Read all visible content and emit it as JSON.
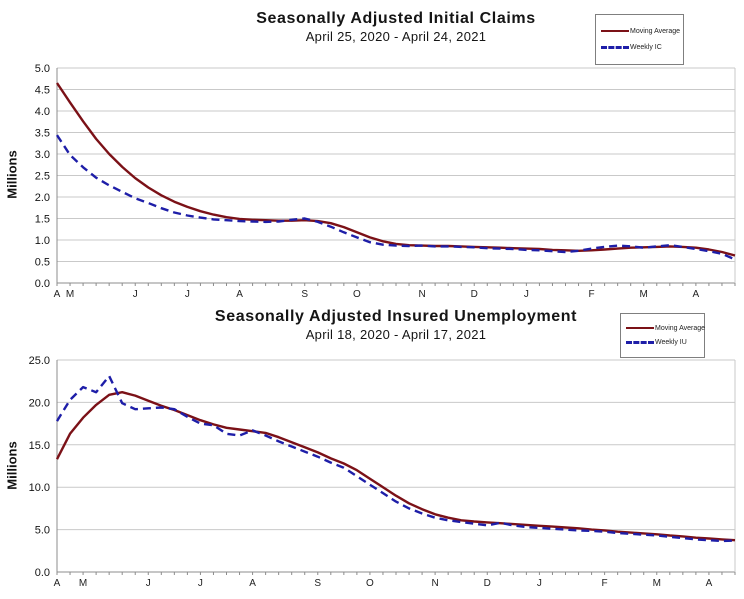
{
  "page": {
    "background": "#ffffff"
  },
  "chart_data": [
    {
      "type": "line",
      "title": "Seasonally Adjusted Initial Claims",
      "subtitle": "April 25, 2020 - April 24, 2021",
      "ylabel": "Millions",
      "ylim": [
        0.0,
        5.0
      ],
      "ytick_step": 0.5,
      "grid": "horizontal",
      "legend_position": "top-right",
      "n_points": 53,
      "x_axis": {
        "unit": "weekly",
        "month_labels": [
          {
            "label": "A",
            "week": 0
          },
          {
            "label": "M",
            "week": 1
          },
          {
            "label": "J",
            "week": 6
          },
          {
            "label": "J",
            "week": 10
          },
          {
            "label": "A",
            "week": 14
          },
          {
            "label": "S",
            "week": 19
          },
          {
            "label": "O",
            "week": 23
          },
          {
            "label": "N",
            "week": 28
          },
          {
            "label": "D",
            "week": 32
          },
          {
            "label": "J",
            "week": 36
          },
          {
            "label": "F",
            "week": 41
          },
          {
            "label": "M",
            "week": 45
          },
          {
            "label": "A",
            "week": 49
          }
        ]
      },
      "series": [
        {
          "name": "Moving Average",
          "color": "#7b1117",
          "line_style": "solid",
          "values": [
            4.65,
            4.2,
            3.76,
            3.35,
            3.0,
            2.7,
            2.44,
            2.22,
            2.04,
            1.89,
            1.77,
            1.67,
            1.59,
            1.53,
            1.49,
            1.47,
            1.46,
            1.45,
            1.45,
            1.46,
            1.44,
            1.39,
            1.3,
            1.18,
            1.06,
            0.97,
            0.91,
            0.88,
            0.87,
            0.86,
            0.86,
            0.85,
            0.84,
            0.83,
            0.82,
            0.81,
            0.8,
            0.79,
            0.77,
            0.76,
            0.75,
            0.76,
            0.78,
            0.8,
            0.82,
            0.83,
            0.84,
            0.85,
            0.84,
            0.82,
            0.78,
            0.72,
            0.64
          ]
        },
        {
          "name": "Weekly IC",
          "color": "#1e1ea8",
          "line_style": "dashed",
          "values": [
            3.44,
            2.98,
            2.69,
            2.45,
            2.27,
            2.12,
            1.97,
            1.86,
            1.74,
            1.64,
            1.57,
            1.52,
            1.48,
            1.46,
            1.44,
            1.43,
            1.42,
            1.43,
            1.47,
            1.5,
            1.42,
            1.31,
            1.18,
            1.06,
            0.95,
            0.89,
            0.87,
            0.86,
            0.87,
            0.85,
            0.85,
            0.84,
            0.83,
            0.81,
            0.8,
            0.79,
            0.77,
            0.76,
            0.74,
            0.72,
            0.75,
            0.8,
            0.84,
            0.87,
            0.85,
            0.82,
            0.85,
            0.88,
            0.84,
            0.79,
            0.74,
            0.68,
            0.55
          ]
        }
      ]
    },
    {
      "type": "line",
      "title": "Seasonally Adjusted Insured Unemployment",
      "subtitle": "April 18, 2020 - April 17, 2021",
      "ylabel": "Millions",
      "ylim": [
        0.0,
        25.0
      ],
      "ytick_step": 5.0,
      "grid": "horizontal",
      "legend_position": "top-right",
      "n_points": 53,
      "x_axis": {
        "unit": "weekly",
        "month_labels": [
          {
            "label": "A",
            "week": 0
          },
          {
            "label": "M",
            "week": 2
          },
          {
            "label": "J",
            "week": 7
          },
          {
            "label": "J",
            "week": 11
          },
          {
            "label": "A",
            "week": 15
          },
          {
            "label": "S",
            "week": 20
          },
          {
            "label": "O",
            "week": 24
          },
          {
            "label": "N",
            "week": 29
          },
          {
            "label": "D",
            "week": 33
          },
          {
            "label": "J",
            "week": 37
          },
          {
            "label": "F",
            "week": 42
          },
          {
            "label": "M",
            "week": 46
          },
          {
            "label": "A",
            "week": 50
          }
        ]
      },
      "series": [
        {
          "name": "Moving Average",
          "color": "#7b1117",
          "line_style": "solid",
          "values": [
            13.3,
            16.3,
            18.2,
            19.7,
            20.9,
            21.2,
            20.8,
            20.2,
            19.6,
            19.1,
            18.5,
            17.9,
            17.4,
            17.0,
            16.8,
            16.6,
            16.4,
            15.9,
            15.3,
            14.7,
            14.1,
            13.4,
            12.8,
            12.0,
            11.0,
            10.0,
            9.0,
            8.1,
            7.4,
            6.8,
            6.4,
            6.1,
            5.95,
            5.85,
            5.75,
            5.65,
            5.55,
            5.45,
            5.35,
            5.25,
            5.15,
            5.0,
            4.9,
            4.75,
            4.65,
            4.55,
            4.45,
            4.3,
            4.2,
            4.05,
            3.95,
            3.85,
            3.75
          ]
        },
        {
          "name": "Weekly IU",
          "color": "#1e1ea8",
          "line_style": "dashed",
          "values": [
            17.8,
            20.3,
            21.8,
            21.2,
            23.1,
            19.9,
            19.2,
            19.3,
            19.4,
            19.2,
            18.3,
            17.5,
            17.3,
            16.3,
            16.1,
            16.7,
            16.1,
            15.4,
            14.8,
            14.2,
            13.6,
            12.9,
            12.3,
            11.3,
            10.3,
            9.3,
            8.3,
            7.5,
            6.9,
            6.4,
            6.1,
            5.9,
            5.7,
            5.5,
            5.8,
            5.5,
            5.3,
            5.2,
            5.1,
            5.0,
            4.9,
            4.85,
            4.75,
            4.6,
            4.5,
            4.4,
            4.3,
            4.15,
            4.0,
            3.85,
            3.75,
            3.65,
            3.7
          ]
        }
      ]
    }
  ]
}
